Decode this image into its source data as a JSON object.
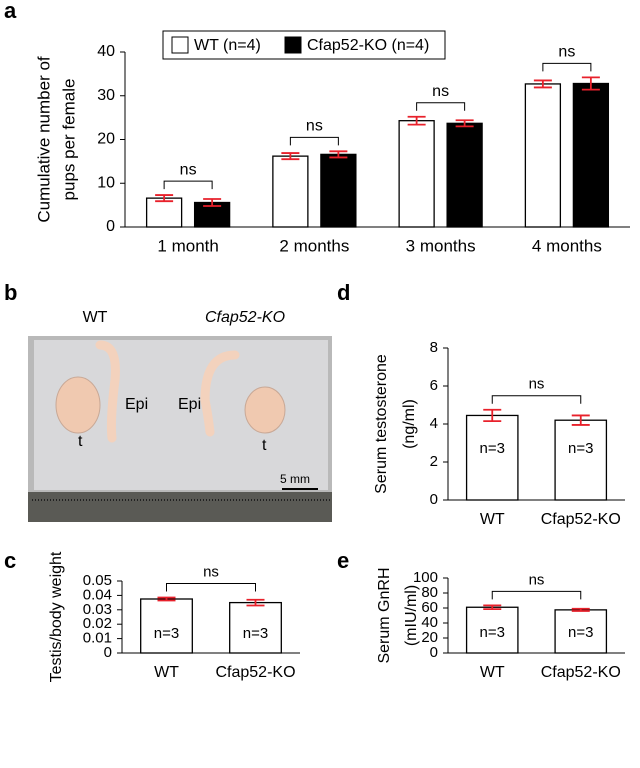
{
  "chart_data": [
    {
      "type": "bar",
      "panel": "a",
      "ylabel": [
        "Cumulative number of",
        "pups per female"
      ],
      "categories": [
        "1 month",
        "2 months",
        "3 months",
        "4 months"
      ],
      "series": [
        {
          "name": "WT (n=4)",
          "color": "#ffffff",
          "values": [
            6.6,
            16.2,
            24.3,
            32.7
          ],
          "errors": [
            0.7,
            0.7,
            0.9,
            0.8
          ]
        },
        {
          "name": "Cfap52-KO (n=4)",
          "color": "#000000",
          "values": [
            5.6,
            16.6,
            23.7,
            32.8
          ],
          "errors": [
            0.8,
            0.7,
            0.7,
            1.4
          ]
        }
      ],
      "significance": [
        "ns",
        "ns",
        "ns",
        "ns"
      ],
      "error_color": "#e8212b",
      "ylim": [
        0,
        40
      ],
      "yticks": [
        0,
        10,
        20,
        30,
        40
      ]
    },
    {
      "type": "bar",
      "panel": "c",
      "ylabel": [
        "Testis/body weight"
      ],
      "categories": [
        "WT",
        "Cfap52-KO"
      ],
      "values": [
        0.0375,
        0.035
      ],
      "errors": [
        0.001,
        0.002
      ],
      "color": "#ffffff",
      "bar_labels": [
        "n=3",
        "n=3"
      ],
      "significance": [
        "ns"
      ],
      "error_color": "#e8212b",
      "ylim": [
        0,
        0.05
      ],
      "yticks": [
        0,
        0.01,
        0.02,
        0.03,
        0.04,
        0.05
      ]
    },
    {
      "type": "bar",
      "panel": "d",
      "ylabel": [
        "Serum testosterone",
        "(ng/ml)"
      ],
      "categories": [
        "WT",
        "Cfap52-KO"
      ],
      "values": [
        4.45,
        4.2
      ],
      "errors": [
        0.3,
        0.25
      ],
      "color": "#ffffff",
      "bar_labels": [
        "n=3",
        "n=3"
      ],
      "significance": [
        "ns"
      ],
      "error_color": "#e8212b",
      "ylim": [
        0,
        8
      ],
      "yticks": [
        0,
        2,
        4,
        6,
        8
      ]
    },
    {
      "type": "bar",
      "panel": "e",
      "ylabel": [
        "Serum GnRH",
        "(mIU/ml)"
      ],
      "categories": [
        "WT",
        "Cfap52-KO"
      ],
      "values": [
        61,
        57.5
      ],
      "errors": [
        2.5,
        1.5
      ],
      "color": "#ffffff",
      "bar_labels": [
        "n=3",
        "n=3"
      ],
      "significance": [
        "ns"
      ],
      "error_color": "#e8212b",
      "ylim": [
        0,
        100
      ],
      "yticks": [
        0,
        20,
        40,
        60,
        80,
        100
      ]
    }
  ],
  "photo": {
    "panel": "b",
    "left_title": "WT",
    "right_title": "Cfap52-KO",
    "left_epi": "Epi",
    "right_epi": "Epi",
    "left_testis": "t",
    "right_testis": "t",
    "scale_bar": "5 mm"
  }
}
